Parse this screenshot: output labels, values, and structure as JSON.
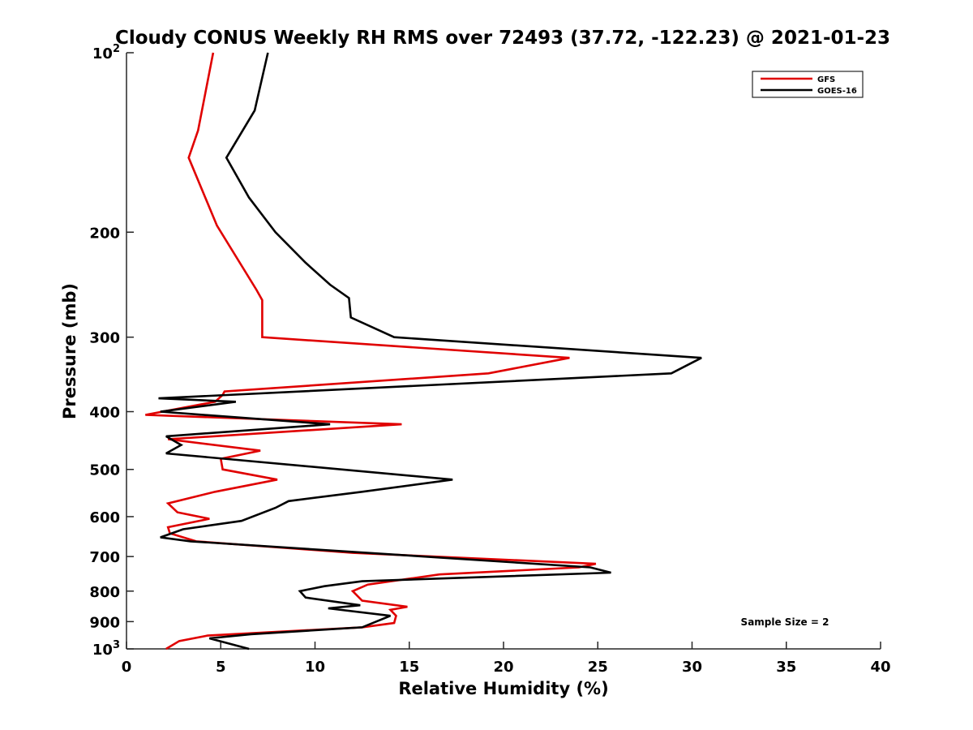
{
  "chart_data": {
    "type": "line",
    "title": "Cloudy CONUS Weekly RH RMS over 72493 (37.72, -122.23) @ 2021-01-23",
    "xlabel": "Relative Humidity (%)",
    "ylabel": "Pressure (mb)",
    "xlim": [
      0,
      40
    ],
    "ylim": [
      100,
      1000
    ],
    "y_scale": "log",
    "y_reversed": true,
    "x_ticks": [
      "0",
      "5",
      "10",
      "15",
      "20",
      "25",
      "30",
      "35",
      "40"
    ],
    "y_ticks": [
      {
        "value": 100,
        "base": "10",
        "exp": "2"
      },
      {
        "value": 200,
        "label": "200"
      },
      {
        "value": 300,
        "label": "300"
      },
      {
        "value": 400,
        "label": "400"
      },
      {
        "value": 500,
        "label": "500"
      },
      {
        "value": 600,
        "label": "600"
      },
      {
        "value": 700,
        "label": "700"
      },
      {
        "value": 800,
        "label": "800"
      },
      {
        "value": 900,
        "label": "900"
      },
      {
        "value": 1000,
        "base": "10",
        "exp": "3"
      }
    ],
    "grid": false,
    "legend_position": "top-right",
    "annotation": "Sample Size = 2",
    "series": [
      {
        "name": "GFS",
        "color": "#e00000",
        "points": [
          [
            4.6,
            100
          ],
          [
            3.8,
            135
          ],
          [
            3.3,
            150
          ],
          [
            4.8,
            195
          ],
          [
            6.9,
            250
          ],
          [
            7.2,
            260
          ],
          [
            7.2,
            300
          ],
          [
            23.5,
            325
          ],
          [
            19.2,
            345
          ],
          [
            5.2,
            370
          ],
          [
            5.1,
            375
          ],
          [
            4.7,
            385
          ],
          [
            1.0,
            405
          ],
          [
            14.6,
            420
          ],
          [
            2.2,
            445
          ],
          [
            7.1,
            465
          ],
          [
            5.0,
            480
          ],
          [
            5.1,
            500
          ],
          [
            8.0,
            520
          ],
          [
            4.7,
            545
          ],
          [
            2.2,
            570
          ],
          [
            2.7,
            590
          ],
          [
            4.4,
            605
          ],
          [
            2.2,
            625
          ],
          [
            2.3,
            640
          ],
          [
            3.7,
            660
          ],
          [
            12.0,
            690
          ],
          [
            24.9,
            720
          ],
          [
            24.0,
            730
          ],
          [
            16.6,
            750
          ],
          [
            12.8,
            780
          ],
          [
            12.0,
            800
          ],
          [
            12.5,
            830
          ],
          [
            14.9,
            850
          ],
          [
            14.0,
            860
          ],
          [
            14.3,
            880
          ],
          [
            14.2,
            905
          ],
          [
            12.5,
            920
          ],
          [
            4.3,
            950
          ],
          [
            2.8,
            970
          ],
          [
            2.1,
            1000
          ]
        ]
      },
      {
        "name": "GOES-16",
        "color": "#000000",
        "points": [
          [
            7.5,
            100
          ],
          [
            6.8,
            125
          ],
          [
            5.3,
            150
          ],
          [
            6.5,
            175
          ],
          [
            7.9,
            200
          ],
          [
            9.5,
            225
          ],
          [
            10.8,
            245
          ],
          [
            11.8,
            258
          ],
          [
            11.9,
            278
          ],
          [
            14.2,
            300
          ],
          [
            30.5,
            325
          ],
          [
            28.9,
            345
          ],
          [
            1.7,
            380
          ],
          [
            5.8,
            385
          ],
          [
            1.8,
            400
          ],
          [
            10.8,
            420
          ],
          [
            2.1,
            440
          ],
          [
            2.9,
            455
          ],
          [
            2.1,
            470
          ],
          [
            17.3,
            520
          ],
          [
            12.5,
            545
          ],
          [
            8.6,
            565
          ],
          [
            7.9,
            580
          ],
          [
            6.1,
            610
          ],
          [
            3.0,
            630
          ],
          [
            1.8,
            650
          ],
          [
            3.4,
            660
          ],
          [
            24.6,
            730
          ],
          [
            25.7,
            745
          ],
          [
            12.5,
            770
          ],
          [
            10.5,
            785
          ],
          [
            9.2,
            800
          ],
          [
            9.5,
            820
          ],
          [
            12.4,
            845
          ],
          [
            10.7,
            855
          ],
          [
            14.0,
            880
          ],
          [
            12.5,
            920
          ],
          [
            6.6,
            945
          ],
          [
            4.4,
            960
          ],
          [
            6.5,
            1000
          ]
        ]
      }
    ]
  }
}
